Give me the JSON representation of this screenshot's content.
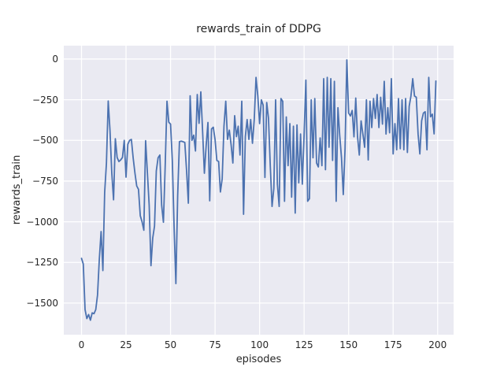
{
  "chart_data": {
    "type": "line",
    "title": "rewards_train of DDPG",
    "xlabel": "episodes",
    "ylabel": "rewards_train",
    "legend": "none",
    "grid": true,
    "xlim": [
      -9.95,
      208.95
    ],
    "ylim": [
      -1694,
      82
    ],
    "x_ticks": [
      0,
      25,
      50,
      75,
      100,
      125,
      150,
      175,
      200
    ],
    "x_tick_labels": [
      "0",
      "25",
      "50",
      "75",
      "100",
      "125",
      "150",
      "175",
      "200"
    ],
    "y_ticks": [
      0,
      -250,
      -500,
      -750,
      -1000,
      -1250,
      -1500
    ],
    "y_tick_labels": [
      "0",
      "−250",
      "−500",
      "−750",
      "−1000",
      "−1250",
      "−1500"
    ],
    "styles": {
      "figure_bg": "#ffffff",
      "axes_bg": "#eaeaf2",
      "grid_color": "#ffffff",
      "text_color": "#262626",
      "line_color": "#4c72b0",
      "line_width": 1.8,
      "grid_width": 1.3
    },
    "series": [
      {
        "name": "rewards_train",
        "color": "#4c72b0",
        "x_start": 0,
        "x_step": 1,
        "values": [
          -1225,
          -1260,
          -1540,
          -1595,
          -1570,
          -1605,
          -1560,
          -1565,
          -1540,
          -1450,
          -1230,
          -1060,
          -1300,
          -820,
          -640,
          -258,
          -440,
          -700,
          -865,
          -490,
          -605,
          -630,
          -620,
          -605,
          -500,
          -726,
          -524,
          -500,
          -494,
          -607,
          -700,
          -780,
          -801,
          -963,
          -1000,
          -1052,
          -502,
          -700,
          -898,
          -1270,
          -1100,
          -1027,
          -688,
          -607,
          -590,
          -898,
          -1003,
          -655,
          -259,
          -388,
          -400,
          -623,
          -1035,
          -1380,
          -840,
          -508,
          -505,
          -508,
          -513,
          -686,
          -886,
          -226,
          -500,
          -468,
          -565,
          -218,
          -395,
          -202,
          -444,
          -702,
          -532,
          -390,
          -871,
          -430,
          -419,
          -495,
          -623,
          -630,
          -817,
          -736,
          -413,
          -259,
          -494,
          -437,
          -526,
          -639,
          -348,
          -477,
          -413,
          -590,
          -259,
          -954,
          -477,
          -372,
          -494,
          -372,
          -518,
          -372,
          -113,
          -227,
          -397,
          -251,
          -283,
          -728,
          -267,
          -364,
          -655,
          -906,
          -795,
          -251,
          -769,
          -906,
          -243,
          -260,
          -874,
          -356,
          -655,
          -397,
          -849,
          -413,
          -947,
          -405,
          -761,
          -461,
          -769,
          -466,
          -130,
          -874,
          -858,
          -251,
          -607,
          -243,
          -639,
          -663,
          -485,
          -655,
          -121,
          -680,
          -113,
          -542,
          -121,
          -623,
          -137,
          -874,
          -299,
          -470,
          -607,
          -833,
          -550,
          -5,
          -332,
          -350,
          -316,
          -478,
          -240,
          -477,
          -590,
          -380,
          -461,
          -542,
          -251,
          -620,
          -259,
          -421,
          -243,
          -365,
          -218,
          -421,
          -235,
          -400,
          -137,
          -461,
          -299,
          -453,
          -121,
          -583,
          -397,
          -558,
          -243,
          -551,
          -251,
          -558,
          -243,
          -574,
          -291,
          -227,
          -121,
          -227,
          -235,
          -461,
          -583,
          -380,
          -332,
          -324,
          -558,
          -113,
          -355,
          -339,
          -460,
          -135
        ]
      }
    ]
  }
}
